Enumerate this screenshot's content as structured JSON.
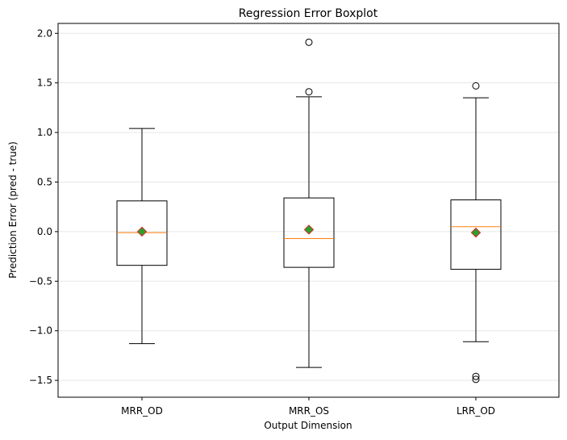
{
  "chart_data": {
    "type": "boxplot",
    "title": "Regression Error Boxplot",
    "xlabel": "Output Dimension",
    "ylabel": "Prediction Error (pred - true)",
    "ylim": [
      -1.67,
      2.1
    ],
    "yticks": [
      -1.5,
      -1.0,
      -0.5,
      0.0,
      0.5,
      1.0,
      1.5,
      2.0
    ],
    "ytick_labels": [
      "−1.5",
      "−1.0",
      "−0.5",
      "0.0",
      "0.5",
      "1.0",
      "1.5",
      "2.0"
    ],
    "grid": "y",
    "categories": [
      "MRR_OD",
      "MRR_OS",
      "LRR_OD"
    ],
    "boxes": [
      {
        "name": "MRR_OD",
        "whisker_low": -1.13,
        "q1": -0.34,
        "median": -0.01,
        "q3": 0.31,
        "whisker_high": 1.04,
        "mean": 0.0,
        "outliers": []
      },
      {
        "name": "MRR_OS",
        "whisker_low": -1.37,
        "q1": -0.36,
        "median": -0.07,
        "q3": 0.34,
        "whisker_high": 1.36,
        "mean": 0.02,
        "outliers": [
          1.41,
          1.91
        ]
      },
      {
        "name": "LRR_OD",
        "whisker_low": -1.11,
        "q1": -0.38,
        "median": 0.05,
        "q3": 0.32,
        "whisker_high": 1.35,
        "mean": -0.01,
        "outliers": [
          1.47,
          -1.46,
          -1.49
        ]
      }
    ],
    "colors": {
      "median": "#ff7f0e",
      "mean_fill": "#2ca02c",
      "mean_edge": "#d62728",
      "box": "#000000",
      "grid": "#e6e6e6"
    }
  }
}
